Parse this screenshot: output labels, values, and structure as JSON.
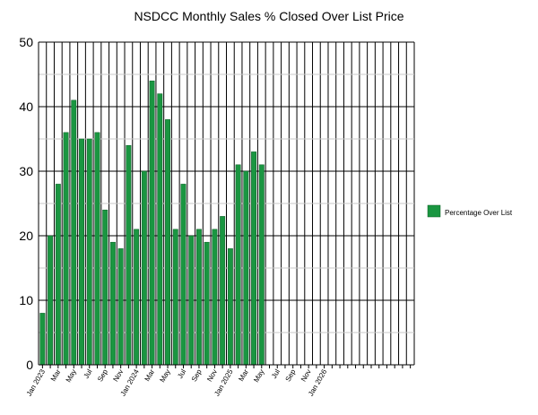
{
  "chart_data": {
    "type": "bar",
    "title": "NSDCC Monthly Sales % Closed Over List Price",
    "xlabel": "",
    "ylabel": "",
    "ylim": [
      0,
      50
    ],
    "yticks": [
      0,
      10,
      20,
      30,
      40,
      50
    ],
    "grid": "on",
    "legend_position": "right",
    "colors": {
      "bar": "#1a9641",
      "bar_edge": "#0f5d27"
    },
    "categories": [
      "Jan 2023",
      "Feb 2023",
      "Mar 2023",
      "Apr 2023",
      "May 2023",
      "Jun 2023",
      "Jul 2023",
      "Aug 2023",
      "Sep 2023",
      "Oct 2023",
      "Nov 2023",
      "Dec 2023",
      "Jan 2024",
      "Feb 2024",
      "Mar 2024",
      "Apr 2024",
      "May 2024",
      "Jun 2024",
      "Jul 2024",
      "Aug 2024",
      "Sep 2024",
      "Oct 2024",
      "Nov 2024",
      "Dec 2024",
      "Jan 2025",
      "Feb 2025",
      "Mar 2025",
      "Apr 2025",
      "May 2025",
      "Jun 2025",
      "Jul 2025",
      "Aug 2025",
      "Sep 2025",
      "Oct 2025",
      "Nov 2025",
      "Dec 2025",
      "Jan 2026",
      "Feb 2026",
      "Mar 2026",
      "Apr 2026",
      "May 2026",
      "Jun 2026",
      "Jul 2026",
      "Aug 2026",
      "Sep 2026",
      "Oct 2026",
      "Nov 2026",
      "Dec 2026"
    ],
    "tick_labels": [
      "Jan 2023",
      "",
      "Mar",
      "",
      "May",
      "",
      "Jul",
      "",
      "Sep",
      "",
      "Nov",
      "",
      "Jan 2024",
      "",
      "Mar",
      "",
      "May",
      "",
      "Jul",
      "",
      "Sep",
      "",
      "Nov",
      "",
      "Jan 2025",
      "",
      "Mar",
      "",
      "May",
      "",
      "Jul",
      "",
      "Sep",
      "",
      "Nov",
      "",
      "Jan 2026",
      "",
      "",
      "",
      "",
      "",
      "",
      "",
      "",
      "",
      "",
      ""
    ],
    "series": [
      {
        "name": "Percentage Over List",
        "values": [
          8,
          20,
          28,
          36,
          41,
          35,
          35,
          36,
          24,
          19,
          18,
          34,
          21,
          30,
          44,
          42,
          38,
          21,
          28,
          20,
          21,
          19,
          21,
          23,
          18,
          31,
          30,
          33,
          31,
          null,
          null,
          null,
          null,
          null,
          null,
          null,
          null,
          null,
          null,
          null,
          null,
          null,
          null,
          null,
          null,
          null,
          null,
          null
        ]
      }
    ]
  }
}
